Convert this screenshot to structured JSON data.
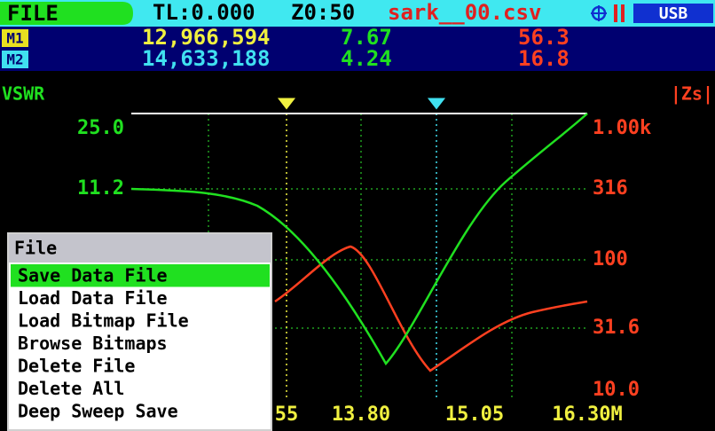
{
  "header": {
    "mode": "FILE",
    "tl": "TL:0.000",
    "z0": "Z0:50",
    "file": "sark__00.csv",
    "usb": "USB"
  },
  "markers": [
    {
      "label": "M1",
      "freq": "12,966,594",
      "vswr": "7.67",
      "z": "56.3"
    },
    {
      "label": "M2",
      "freq": "14,633,188",
      "vswr": "4.24",
      "z": "16.8"
    }
  ],
  "plot": {
    "left_label": "VSWR",
    "right_label": "|Zs|",
    "left_ticks": [
      "25.0",
      "11.2"
    ],
    "right_ticks": [
      "1.00k",
      "316",
      "100",
      "31.6",
      "10.0"
    ],
    "x_ticks": [
      "55",
      "13.80",
      "15.05",
      "16.30M"
    ]
  },
  "menu": {
    "title": "File",
    "items": [
      "Save Data File",
      "Load Data File",
      "Load Bitmap File",
      "Browse Bitmaps",
      "Delete File",
      "Delete All",
      "Deep Sweep Save"
    ]
  }
}
